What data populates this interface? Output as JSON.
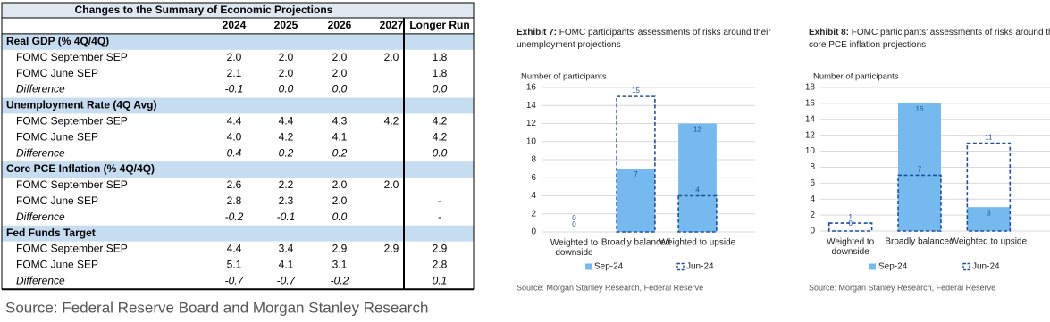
{
  "table": {
    "title": "Changes to the Summary of Economic Projections",
    "columns": [
      "2024",
      "2025",
      "2026",
      "2027",
      "Longer Run"
    ],
    "sections": [
      {
        "name": "Real GDP (% 4Q/4Q)",
        "rows": [
          {
            "label": "FOMC September SEP",
            "values": [
              "2.0",
              "2.0",
              "2.0",
              "2.0",
              "1.8"
            ]
          },
          {
            "label": "FOMC June SEP",
            "values": [
              "2.1",
              "2.0",
              "2.0",
              null,
              "1.8"
            ]
          },
          {
            "label": "Difference",
            "values": [
              "-0.1",
              "0.0",
              "0.0",
              null,
              "0.0"
            ]
          }
        ]
      },
      {
        "name": "Unemployment Rate (4Q Avg)",
        "rows": [
          {
            "label": "FOMC September SEP",
            "values": [
              "4.4",
              "4.4",
              "4.3",
              "4.2",
              "4.2"
            ]
          },
          {
            "label": "FOMC June SEP",
            "values": [
              "4.0",
              "4.2",
              "4.1",
              null,
              "4.2"
            ]
          },
          {
            "label": "Difference",
            "values": [
              "0.4",
              "0.2",
              "0.2",
              null,
              "0.0"
            ]
          }
        ]
      },
      {
        "name": "Core PCE Inflation (% 4Q/4Q)",
        "rows": [
          {
            "label": "FOMC September SEP",
            "values": [
              "2.6",
              "2.2",
              "2.0",
              "2.0",
              null
            ]
          },
          {
            "label": "FOMC June SEP",
            "values": [
              "2.8",
              "2.3",
              "2.0",
              null,
              "-"
            ]
          },
          {
            "label": "Difference",
            "values": [
              "-0.2",
              "-0.1",
              "0.0",
              null,
              "-"
            ]
          }
        ]
      },
      {
        "name": "Fed Funds Target",
        "rows": [
          {
            "label": "FOMC September SEP",
            "values": [
              "4.4",
              "3.4",
              "2.9",
              "2.9",
              "2.9"
            ]
          },
          {
            "label": "FOMC June SEP",
            "values": [
              "5.1",
              "4.1",
              "3.1",
              null,
              "2.8"
            ]
          },
          {
            "label": "Difference",
            "values": [
              "-0.7",
              "-0.7",
              "-0.2",
              null,
              "0.1"
            ]
          }
        ]
      }
    ],
    "source": "Source: Federal Reserve Board and Morgan Stanley Research"
  },
  "chart_data": [
    {
      "type": "bar",
      "exhibit": "Exhibit 7:",
      "title": "FOMC participants’ assessments of risks around their unemployment projections",
      "ylabel": "Number of participants",
      "categories": [
        "Weighted to downside",
        "Broadly balanced",
        "Weighted to upside"
      ],
      "series": [
        {
          "name": "Sep-24",
          "color": "#75b9ef",
          "values": [
            0,
            7,
            12
          ]
        },
        {
          "name": "Jun-24",
          "color": "#1f4fa0",
          "values": [
            0,
            15,
            4
          ]
        }
      ],
      "ylim": [
        0,
        16
      ],
      "yticks": [
        0,
        2,
        4,
        6,
        8,
        10,
        12,
        14,
        16
      ],
      "grid": true,
      "source": "Source: Morgan Stanley Research, Federal Reserve"
    },
    {
      "type": "bar",
      "exhibit": "Exhibit 8:",
      "title": "FOMC participants’ assessments of risks around their core PCE inflation projections",
      "ylabel": "Number of participants",
      "categories": [
        "Weighted to downside",
        "Broadly balanced",
        "Weighted to upside"
      ],
      "series": [
        {
          "name": "Sep-24",
          "color": "#75b9ef",
          "values": [
            0,
            16,
            3
          ]
        },
        {
          "name": "Jun-24",
          "color": "#1f4fa0",
          "values": [
            1,
            7,
            11
          ]
        }
      ],
      "ylim": [
        0,
        18
      ],
      "yticks": [
        0,
        2,
        4,
        6,
        8,
        10,
        12,
        14,
        16,
        18
      ],
      "grid": true,
      "source": "Source: Morgan Stanley Research, Federal Reserve"
    }
  ]
}
